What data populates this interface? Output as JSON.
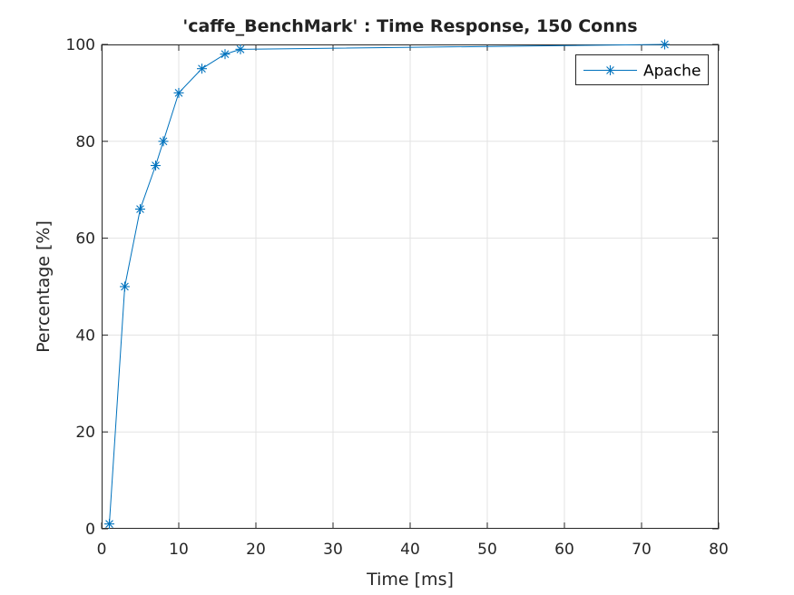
{
  "chart_data": {
    "type": "line",
    "title": "'caffe_BenchMark' : Time Response, 150 Conns",
    "xlabel": "Time [ms]",
    "ylabel": "Percentage [%]",
    "xlim": [
      0,
      80
    ],
    "ylim": [
      0,
      100
    ],
    "xticks": [
      0,
      10,
      20,
      30,
      40,
      50,
      60,
      70,
      80
    ],
    "yticks": [
      0,
      20,
      40,
      60,
      80,
      100
    ],
    "grid": true,
    "legend_position": "top-right",
    "series": [
      {
        "name": "Apache",
        "color": "#0072BD",
        "marker": "asterisk",
        "x": [
          1,
          3,
          5,
          7,
          8,
          10,
          13,
          16,
          18,
          73
        ],
        "y": [
          1,
          50,
          66,
          75,
          80,
          90,
          95,
          98,
          99,
          100
        ]
      }
    ]
  }
}
